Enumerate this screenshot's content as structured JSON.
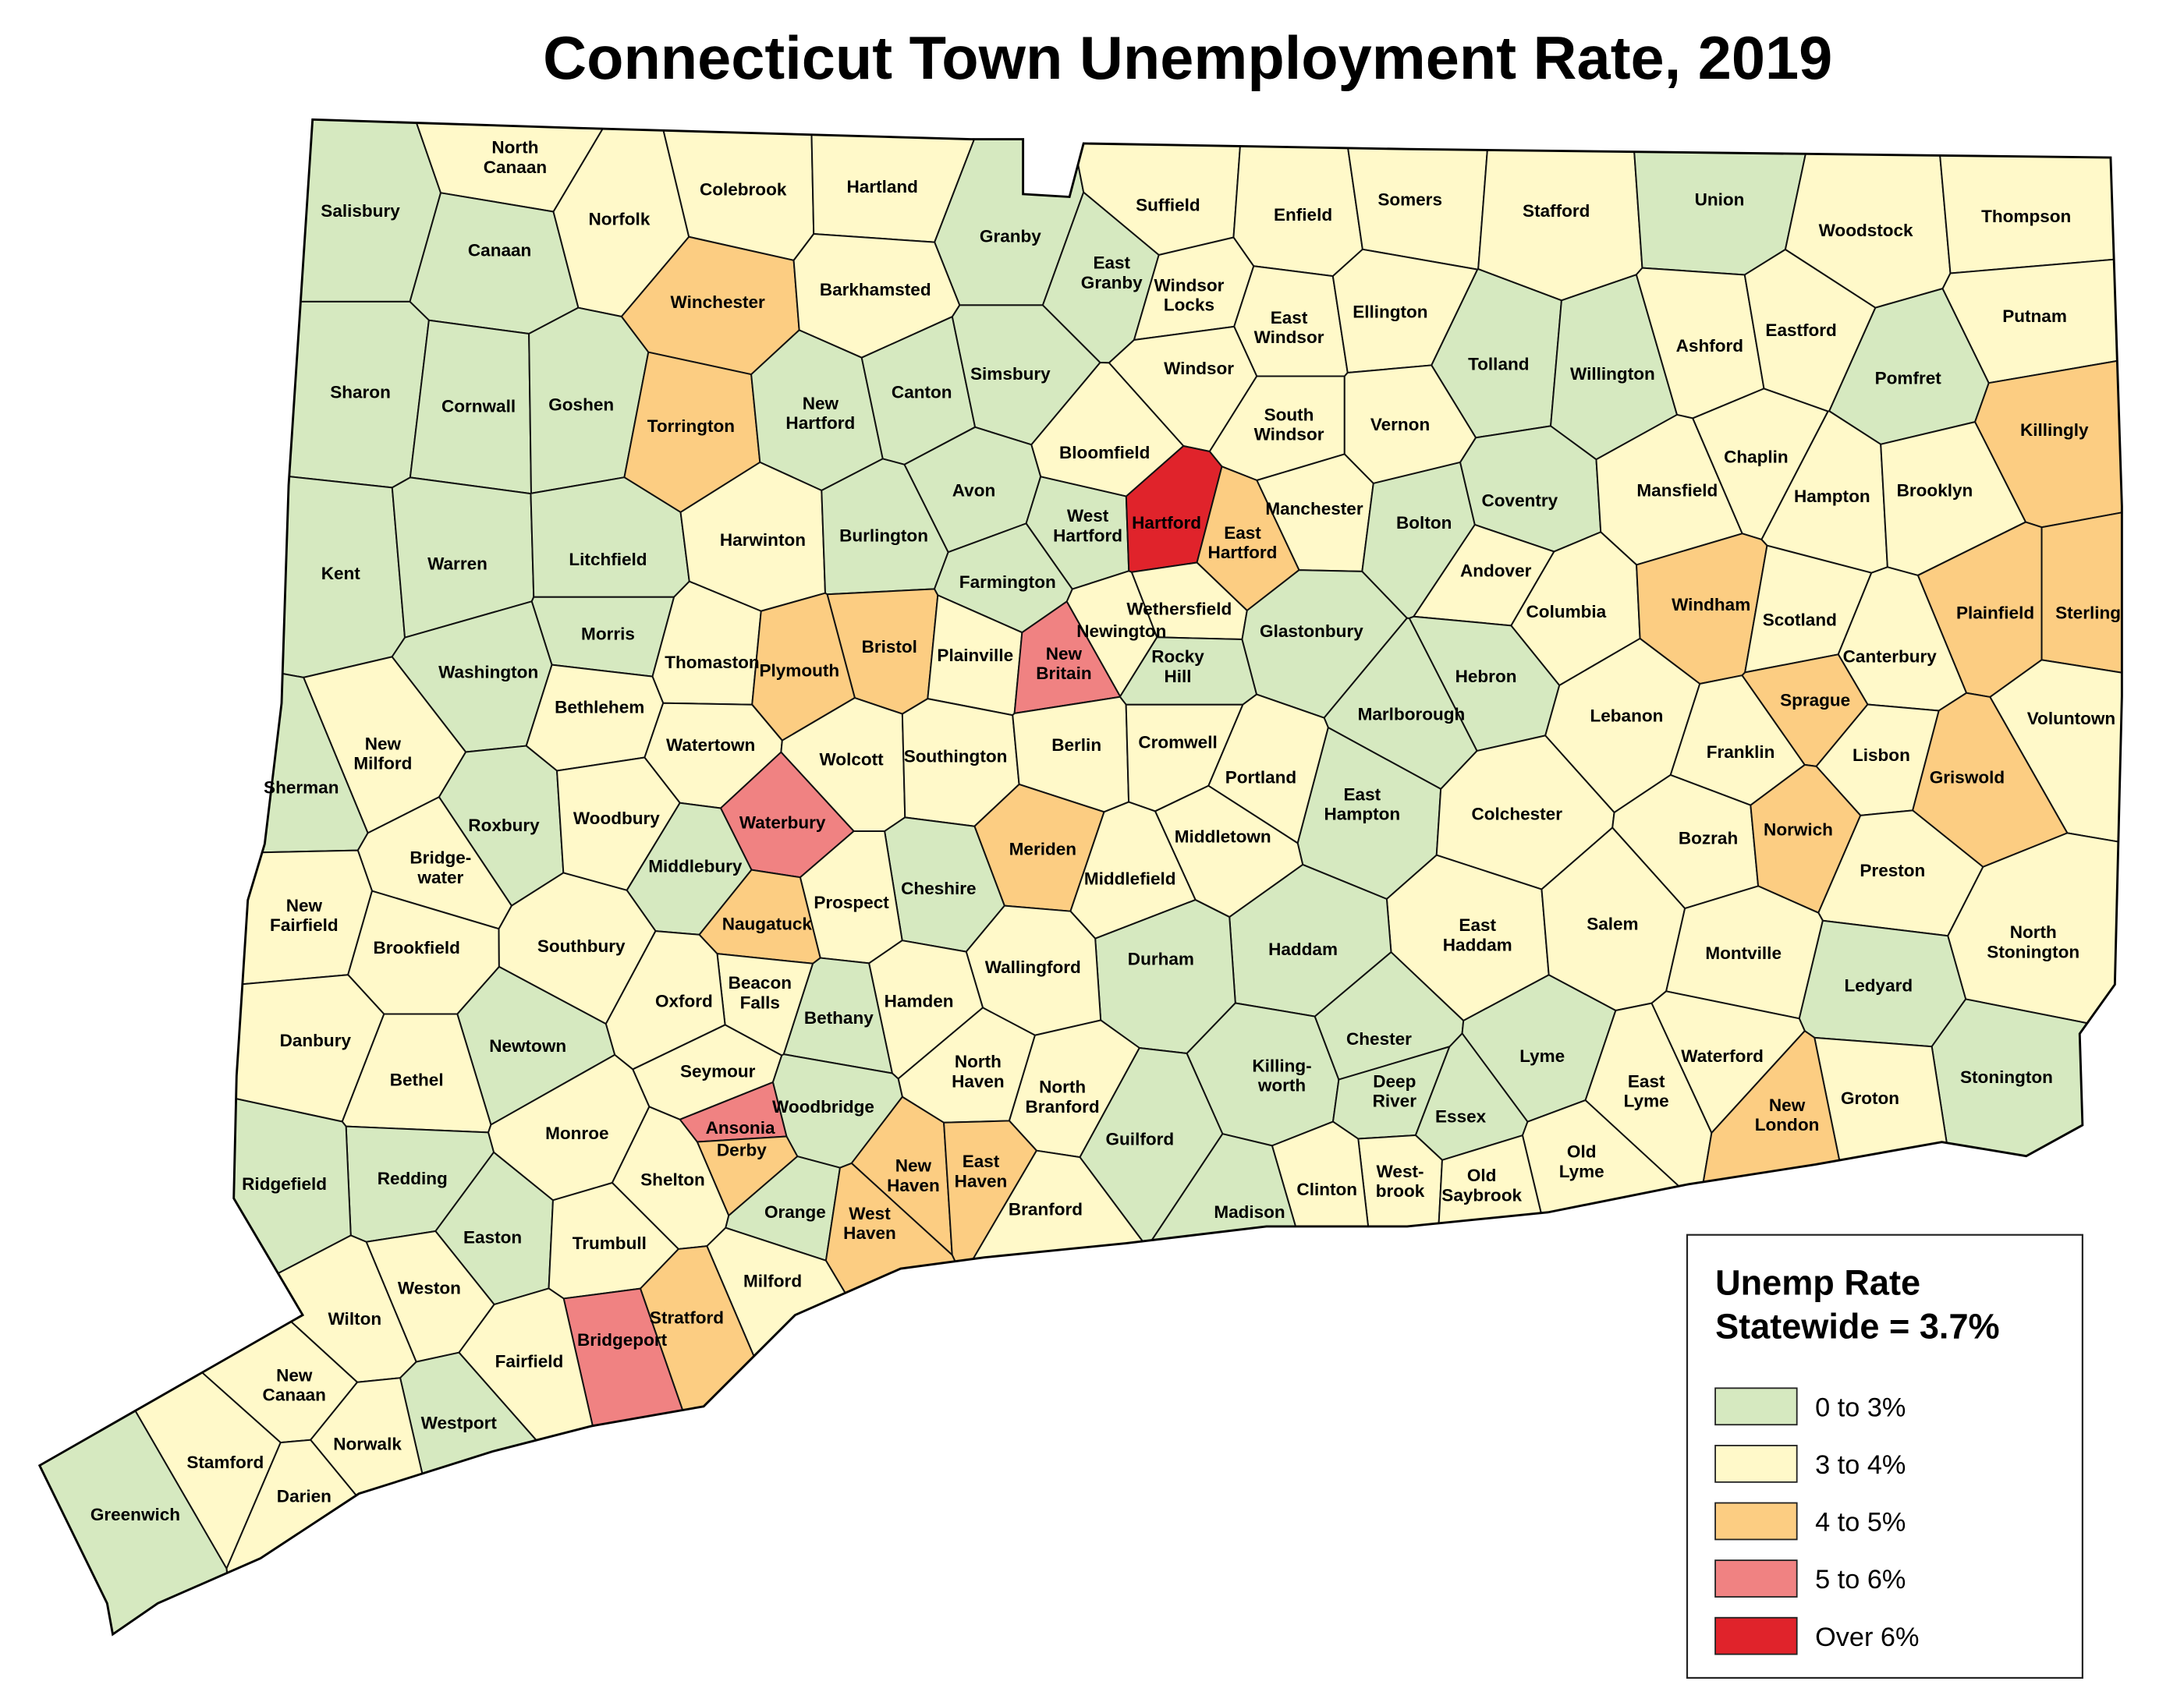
{
  "title": "Connecticut Town Unemployment Rate, 2019",
  "legend": {
    "title": "Unemp Rate\nStatewide = 3.7%",
    "items": [
      {
        "name": "0 to 3%",
        "color": "#d6e9c0"
      },
      {
        "name": "3 to 4%",
        "color": "#fff9c9"
      },
      {
        "name": "4 to 5%",
        "color": "#fccd82"
      },
      {
        "name": "5 to 6%",
        "color": "#f08282"
      },
      {
        "name": "Over 6%",
        "color": "#e0232b"
      }
    ]
  },
  "towns": [
    {
      "name": "Salisbury",
      "class": 0
    },
    {
      "name": "North\nCanaan",
      "class": 1
    },
    {
      "name": "Canaan",
      "class": 0
    },
    {
      "name": "Norfolk",
      "class": 1
    },
    {
      "name": "Colebrook",
      "class": 1
    },
    {
      "name": "Hartland",
      "class": 1
    },
    {
      "name": "Granby",
      "class": 0
    },
    {
      "name": "Suffield",
      "class": 1
    },
    {
      "name": "Enfield",
      "class": 1
    },
    {
      "name": "Somers",
      "class": 1
    },
    {
      "name": "Stafford",
      "class": 1
    },
    {
      "name": "Union",
      "class": 0
    },
    {
      "name": "Woodstock",
      "class": 1
    },
    {
      "name": "Thompson",
      "class": 1
    },
    {
      "name": "Winchester",
      "class": 2
    },
    {
      "name": "Barkhamsted",
      "class": 1
    },
    {
      "name": "East\nGranby",
      "class": 0
    },
    {
      "name": "Windsor\nLocks",
      "class": 1
    },
    {
      "name": "East\nWindsor",
      "class": 1
    },
    {
      "name": "Ellington",
      "class": 1
    },
    {
      "name": "Tolland",
      "class": 0
    },
    {
      "name": "Willington",
      "class": 0
    },
    {
      "name": "Ashford",
      "class": 1
    },
    {
      "name": "Eastford",
      "class": 1
    },
    {
      "name": "Pomfret",
      "class": 0
    },
    {
      "name": "Putnam",
      "class": 1
    },
    {
      "name": "Sharon",
      "class": 0
    },
    {
      "name": "Cornwall",
      "class": 0
    },
    {
      "name": "Goshen",
      "class": 0
    },
    {
      "name": "Torrington",
      "class": 2
    },
    {
      "name": "New\nHartford",
      "class": 0
    },
    {
      "name": "Canton",
      "class": 0
    },
    {
      "name": "Simsbury",
      "class": 0
    },
    {
      "name": "Windsor",
      "class": 1
    },
    {
      "name": "South\nWindsor",
      "class": 1
    },
    {
      "name": "Vernon",
      "class": 1
    },
    {
      "name": "Killingly",
      "class": 2
    },
    {
      "name": "Bloomfield",
      "class": 1
    },
    {
      "name": "Kent",
      "class": 0
    },
    {
      "name": "Warren",
      "class": 0
    },
    {
      "name": "Litchfield",
      "class": 0
    },
    {
      "name": "Harwinton",
      "class": 1
    },
    {
      "name": "Burlington",
      "class": 0
    },
    {
      "name": "Avon",
      "class": 0
    },
    {
      "name": "West\nHartford",
      "class": 0
    },
    {
      "name": "Hartford",
      "class": 4
    },
    {
      "name": "East\nHartford",
      "class": 2
    },
    {
      "name": "Manchester",
      "class": 1
    },
    {
      "name": "Bolton",
      "class": 0
    },
    {
      "name": "Coventry",
      "class": 0
    },
    {
      "name": "Mansfield",
      "class": 1
    },
    {
      "name": "Chaplin",
      "class": 1
    },
    {
      "name": "Hampton",
      "class": 1
    },
    {
      "name": "Brooklyn",
      "class": 1
    },
    {
      "name": "Farmington",
      "class": 0
    },
    {
      "name": "Andover",
      "class": 1
    },
    {
      "name": "Columbia",
      "class": 1
    },
    {
      "name": "Windham",
      "class": 2
    },
    {
      "name": "Scotland",
      "class": 1
    },
    {
      "name": "Plainfield",
      "class": 2
    },
    {
      "name": "Sterling",
      "class": 2
    },
    {
      "name": "Canterbury",
      "class": 1
    },
    {
      "name": "Morris",
      "class": 0
    },
    {
      "name": "Washington",
      "class": 0
    },
    {
      "name": "Thomaston",
      "class": 1
    },
    {
      "name": "Bristol",
      "class": 2
    },
    {
      "name": "Plymouth",
      "class": 2
    },
    {
      "name": "Plainville",
      "class": 1
    },
    {
      "name": "Newington",
      "class": 1
    },
    {
      "name": "Wethersfield",
      "class": 1
    },
    {
      "name": "New\nBritain",
      "class": 3
    },
    {
      "name": "Rocky\nHill",
      "class": 0
    },
    {
      "name": "Glastonbury",
      "class": 0
    },
    {
      "name": "Hebron",
      "class": 0
    },
    {
      "name": "Bethlehem",
      "class": 1
    },
    {
      "name": "Watertown",
      "class": 1
    },
    {
      "name": "New\nMilford",
      "class": 1
    },
    {
      "name": "Marlborough",
      "class": 0
    },
    {
      "name": "Lebanon",
      "class": 1
    },
    {
      "name": "Franklin",
      "class": 1
    },
    {
      "name": "Sprague",
      "class": 2
    },
    {
      "name": "Lisbon",
      "class": 1
    },
    {
      "name": "Voluntown",
      "class": 1
    },
    {
      "name": "Griswold",
      "class": 2
    },
    {
      "name": "Sherman",
      "class": 0
    },
    {
      "name": "Wolcott",
      "class": 1
    },
    {
      "name": "Southington",
      "class": 1
    },
    {
      "name": "Berlin",
      "class": 1
    },
    {
      "name": "Cromwell",
      "class": 1
    },
    {
      "name": "Portland",
      "class": 1
    },
    {
      "name": "East\nHampton",
      "class": 0
    },
    {
      "name": "Colchester",
      "class": 1
    },
    {
      "name": "Waterbury",
      "class": 3
    },
    {
      "name": "Roxbury",
      "class": 0
    },
    {
      "name": "Woodbury",
      "class": 1
    },
    {
      "name": "Meriden",
      "class": 2
    },
    {
      "name": "Middletown",
      "class": 1
    },
    {
      "name": "Bozrah",
      "class": 1
    },
    {
      "name": "Norwich",
      "class": 2
    },
    {
      "name": "Bridge-\nwater",
      "class": 1
    },
    {
      "name": "Middlebury",
      "class": 0
    },
    {
      "name": "Middlefield",
      "class": 1
    },
    {
      "name": "Preston",
      "class": 1
    },
    {
      "name": "Cheshire",
      "class": 0
    },
    {
      "name": "Prospect",
      "class": 1
    },
    {
      "name": "New\nFairfield",
      "class": 1
    },
    {
      "name": "Naugatuck",
      "class": 2
    },
    {
      "name": "East\nHaddam",
      "class": 1
    },
    {
      "name": "Salem",
      "class": 1
    },
    {
      "name": "North\nStonington",
      "class": 1
    },
    {
      "name": "Brookfield",
      "class": 1
    },
    {
      "name": "Southbury",
      "class": 1
    },
    {
      "name": "Haddam",
      "class": 0
    },
    {
      "name": "Montville",
      "class": 1
    },
    {
      "name": "Durham",
      "class": 0
    },
    {
      "name": "Wallingford",
      "class": 1
    },
    {
      "name": "Beacon\nFalls",
      "class": 1
    },
    {
      "name": "Ledyard",
      "class": 0
    },
    {
      "name": "Oxford",
      "class": 1
    },
    {
      "name": "Hamden",
      "class": 1
    },
    {
      "name": "Bethany",
      "class": 0
    },
    {
      "name": "Killing-\nworth",
      "class": 0
    },
    {
      "name": "Newtown",
      "class": 0
    },
    {
      "name": "Danbury",
      "class": 1
    },
    {
      "name": "Chester",
      "class": 0
    },
    {
      "name": "Lyme",
      "class": 0
    },
    {
      "name": "North\nHaven",
      "class": 1
    },
    {
      "name": "Seymour",
      "class": 1
    },
    {
      "name": "Bethel",
      "class": 1
    },
    {
      "name": "North\nBranford",
      "class": 1
    },
    {
      "name": "Deep\nRiver",
      "class": 0
    },
    {
      "name": "East\nLyme",
      "class": 1
    },
    {
      "name": "Waterford",
      "class": 1
    },
    {
      "name": "Stonington",
      "class": 0
    },
    {
      "name": "Groton",
      "class": 1
    },
    {
      "name": "Woodbridge",
      "class": 0
    },
    {
      "name": "Monroe",
      "class": 1
    },
    {
      "name": "Ansonia",
      "class": 3
    },
    {
      "name": "Essex",
      "class": 0
    },
    {
      "name": "New\nLondon",
      "class": 2
    },
    {
      "name": "Guilford",
      "class": 0
    },
    {
      "name": "Old\nLyme",
      "class": 1
    },
    {
      "name": "Derby",
      "class": 2
    },
    {
      "name": "New\nHaven",
      "class": 2
    },
    {
      "name": "East\nHaven",
      "class": 2
    },
    {
      "name": "Redding",
      "class": 0
    },
    {
      "name": "Ridgefield",
      "class": 0
    },
    {
      "name": "Shelton",
      "class": 1
    },
    {
      "name": "West-\nbrook",
      "class": 1
    },
    {
      "name": "Old\nSaybrook",
      "class": 1
    },
    {
      "name": "Clinton",
      "class": 1
    },
    {
      "name": "Orange",
      "class": 0
    },
    {
      "name": "West\nHaven",
      "class": 2
    },
    {
      "name": "Madison",
      "class": 0
    },
    {
      "name": "Branford",
      "class": 1
    },
    {
      "name": "Easton",
      "class": 0
    },
    {
      "name": "Trumbull",
      "class": 1
    },
    {
      "name": "Milford",
      "class": 1
    },
    {
      "name": "Weston",
      "class": 1
    },
    {
      "name": "Stratford",
      "class": 2
    },
    {
      "name": "Wilton",
      "class": 1
    },
    {
      "name": "Bridgeport",
      "class": 3
    },
    {
      "name": "Fairfield",
      "class": 1
    },
    {
      "name": "New\nCanaan",
      "class": 1
    },
    {
      "name": "Westport",
      "class": 0
    },
    {
      "name": "Norwalk",
      "class": 1
    },
    {
      "name": "Stamford",
      "class": 1
    },
    {
      "name": "Darien",
      "class": 1
    },
    {
      "name": "Greenwich",
      "class": 0
    }
  ]
}
